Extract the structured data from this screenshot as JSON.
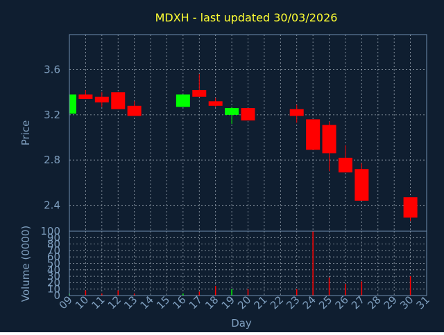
{
  "colors": {
    "background": "#0f1e30",
    "plot_border": "#6f8fb0",
    "grid": "#c8d2dc",
    "title": "#ffff33",
    "axis_text": "#7f9fbf",
    "up": "#00ff00",
    "down": "#ff0000"
  },
  "chart_data": [
    {
      "type": "candlestick",
      "title": "MDXH - last updated 30/03/2026",
      "ylabel": "Price",
      "ylim": [
        2.17,
        3.91
      ],
      "yticks": [
        "2.4",
        "2.8",
        "3.2",
        "3.6"
      ],
      "grid": true,
      "series": [
        {
          "day": "09",
          "open": 3.21,
          "high": 3.38,
          "low": 3.2,
          "close": 3.38
        },
        {
          "day": "10",
          "open": 3.38,
          "high": 3.42,
          "low": 3.34,
          "close": 3.34
        },
        {
          "day": "11",
          "open": 3.36,
          "high": 3.4,
          "low": 3.27,
          "close": 3.31
        },
        {
          "day": "12",
          "open": 3.4,
          "high": 3.4,
          "low": 3.25,
          "close": 3.25
        },
        {
          "day": "13",
          "open": 3.28,
          "high": 3.32,
          "low": 3.19,
          "close": 3.19
        },
        {
          "day": "16",
          "open": 3.27,
          "high": 3.38,
          "low": 3.27,
          "close": 3.38
        },
        {
          "day": "17",
          "open": 3.42,
          "high": 3.56,
          "low": 3.36,
          "close": 3.36
        },
        {
          "day": "18",
          "open": 3.32,
          "high": 3.35,
          "low": 3.27,
          "close": 3.28
        },
        {
          "day": "19",
          "open": 3.2,
          "high": 3.27,
          "low": 3.12,
          "close": 3.26
        },
        {
          "day": "20",
          "open": 3.26,
          "high": 3.26,
          "low": 3.15,
          "close": 3.15
        },
        {
          "day": "23",
          "open": 3.25,
          "high": 3.29,
          "low": 3.13,
          "close": 3.19
        },
        {
          "day": "24",
          "open": 3.16,
          "high": 3.16,
          "low": 2.89,
          "close": 2.89
        },
        {
          "day": "25",
          "open": 3.11,
          "high": 3.14,
          "low": 2.7,
          "close": 2.86
        },
        {
          "day": "26",
          "open": 2.82,
          "high": 2.93,
          "low": 2.69,
          "close": 2.69
        },
        {
          "day": "27",
          "open": 2.72,
          "high": 2.77,
          "low": 2.44,
          "close": 2.44
        },
        {
          "day": "30",
          "open": 2.47,
          "high": 2.47,
          "low": 2.26,
          "close": 2.29
        }
      ]
    },
    {
      "type": "bar",
      "xlabel": "Day",
      "ylabel": "Volume (0000)",
      "ylim": [
        0,
        100
      ],
      "yticks": [
        "0",
        "10",
        "20",
        "30",
        "40",
        "50",
        "60",
        "70",
        "80",
        "90",
        "100"
      ],
      "xticks": [
        "09",
        "10",
        "11",
        "12",
        "13",
        "14",
        "15",
        "16",
        "17",
        "18",
        "19",
        "20",
        "21",
        "22",
        "23",
        "24",
        "25",
        "26",
        "27",
        "28",
        "29",
        "30",
        "31"
      ],
      "grid": true,
      "series": [
        {
          "day": "09",
          "value": 3,
          "dir": "up"
        },
        {
          "day": "10",
          "value": 8,
          "dir": "down"
        },
        {
          "day": "11",
          "value": 3,
          "dir": "down"
        },
        {
          "day": "12",
          "value": 8,
          "dir": "down"
        },
        {
          "day": "13",
          "value": 3,
          "dir": "down"
        },
        {
          "day": "16",
          "value": 3,
          "dir": "up"
        },
        {
          "day": "17",
          "value": 6,
          "dir": "down"
        },
        {
          "day": "18",
          "value": 15,
          "dir": "down"
        },
        {
          "day": "19",
          "value": 10,
          "dir": "up"
        },
        {
          "day": "20",
          "value": 10,
          "dir": "down"
        },
        {
          "day": "23",
          "value": 10,
          "dir": "down"
        },
        {
          "day": "24",
          "value": 100,
          "dir": "down"
        },
        {
          "day": "25",
          "value": 28,
          "dir": "down"
        },
        {
          "day": "26",
          "value": 18,
          "dir": "down"
        },
        {
          "day": "27",
          "value": 22,
          "dir": "down"
        },
        {
          "day": "30",
          "value": 30,
          "dir": "down"
        }
      ]
    }
  ]
}
